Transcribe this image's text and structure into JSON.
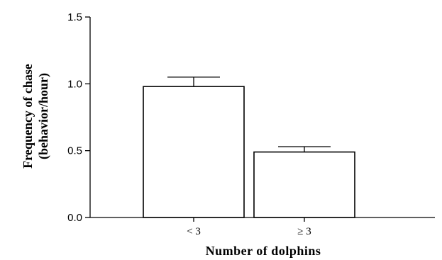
{
  "chart_data": {
    "type": "bar",
    "categories": [
      "< 3",
      "≥ 3"
    ],
    "values": [
      0.98,
      0.49
    ],
    "error_upper": [
      1.05,
      0.53
    ],
    "xlabel": "Number of dolphins",
    "ylabel_line1": "Frequency of chase",
    "ylabel_line2": "(behavior/hour)",
    "ylim": [
      0,
      1.5
    ],
    "yticks": [
      "0.0",
      "0.5",
      "1.0",
      "1.5"
    ],
    "ytick_values": [
      0,
      0.5,
      1.0,
      1.5
    ],
    "grid": false,
    "bar_fill": "#ffffff",
    "bar_stroke": "#000000"
  }
}
